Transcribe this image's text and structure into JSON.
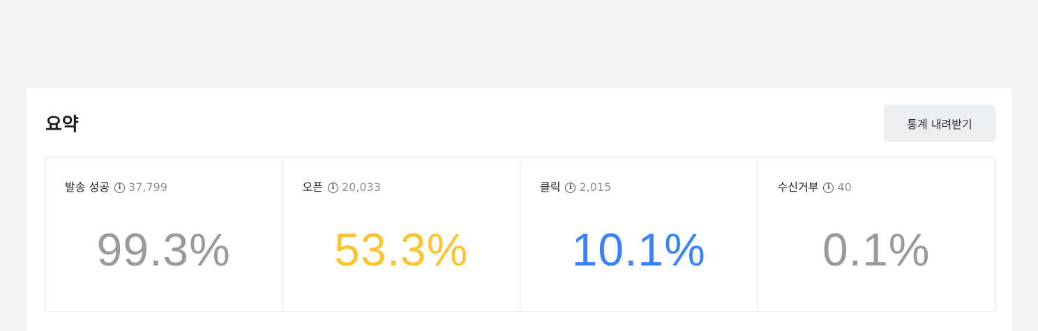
{
  "summary": {
    "title": "요약",
    "download_label": "통계 내려받기"
  },
  "stats": [
    {
      "label": "발송 성공",
      "count": "37,799",
      "rate": "99.3%",
      "color": "#9a9a9a",
      "icon": "info-icon"
    },
    {
      "label": "오픈",
      "count": "20,033",
      "rate": "53.3%",
      "color": "#fbc531",
      "icon": "info-icon"
    },
    {
      "label": "클릭",
      "count": "2,015",
      "rate": "10.1%",
      "color": "#3b82f6",
      "icon": "info-icon"
    },
    {
      "label": "수신거부",
      "count": "40",
      "rate": "0.1%",
      "color": "#9a9a9a",
      "icon": "info-icon"
    }
  ],
  "colors": {
    "background": "#f4f4f4",
    "panel": "#ffffff",
    "border": "#e3e3e3",
    "button_bg": "#eceef1"
  }
}
